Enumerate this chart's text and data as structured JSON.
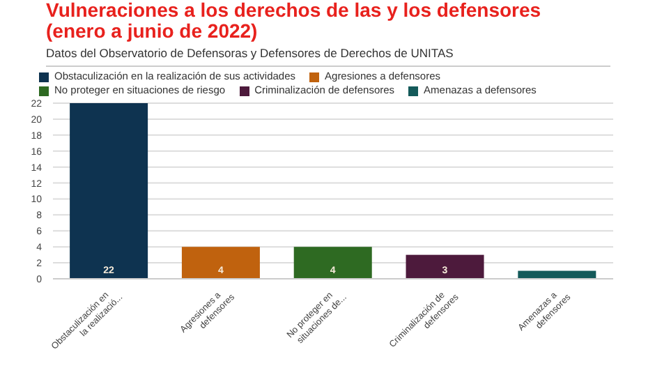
{
  "chart_data": {
    "type": "bar",
    "title": "Vulneraciones a los derechos de las y los defensores (enero a junio de 2022)",
    "subtitle": "Datos del Observatorio de Defensoras y Defensores de Derechos de UNITAS",
    "categories": [
      "Obstaculización en la realizació...",
      "Agresiones a defensores",
      "No proteger en situaciones de...",
      "Criminalización de defensores",
      "Amenazas a defensores"
    ],
    "series": [
      {
        "name": "Obstaculización en la realización de sus actividades",
        "color": "#0e3350",
        "values": [
          22,
          null,
          null,
          null,
          null
        ],
        "value_labels": [
          "22",
          null,
          null,
          null,
          null
        ]
      },
      {
        "name": "Agresiones a defensores",
        "color": "#c0620e",
        "values": [
          null,
          4,
          null,
          null,
          null
        ],
        "value_labels": [
          null,
          "4",
          null,
          null,
          null
        ]
      },
      {
        "name": "No proteger en situaciones de riesgo",
        "color": "#2e6a22",
        "values": [
          null,
          null,
          4,
          null,
          null
        ],
        "value_labels": [
          null,
          null,
          "4",
          null,
          null
        ]
      },
      {
        "name": "Criminalización de defensores",
        "color": "#4d1a3c",
        "values": [
          null,
          null,
          null,
          3,
          null
        ],
        "value_labels": [
          null,
          null,
          null,
          "3",
          null
        ]
      },
      {
        "name": "Amenazas a defensores",
        "color": "#145a5a",
        "values": [
          null,
          null,
          null,
          null,
          1
        ],
        "value_labels": [
          null,
          null,
          null,
          null,
          null
        ]
      }
    ],
    "stacked": true,
    "ylim": [
      0,
      22
    ],
    "yticks": [
      0,
      2,
      4,
      6,
      8,
      10,
      12,
      14,
      16,
      18,
      20,
      22
    ],
    "grid": "y",
    "legend": "top left"
  }
}
